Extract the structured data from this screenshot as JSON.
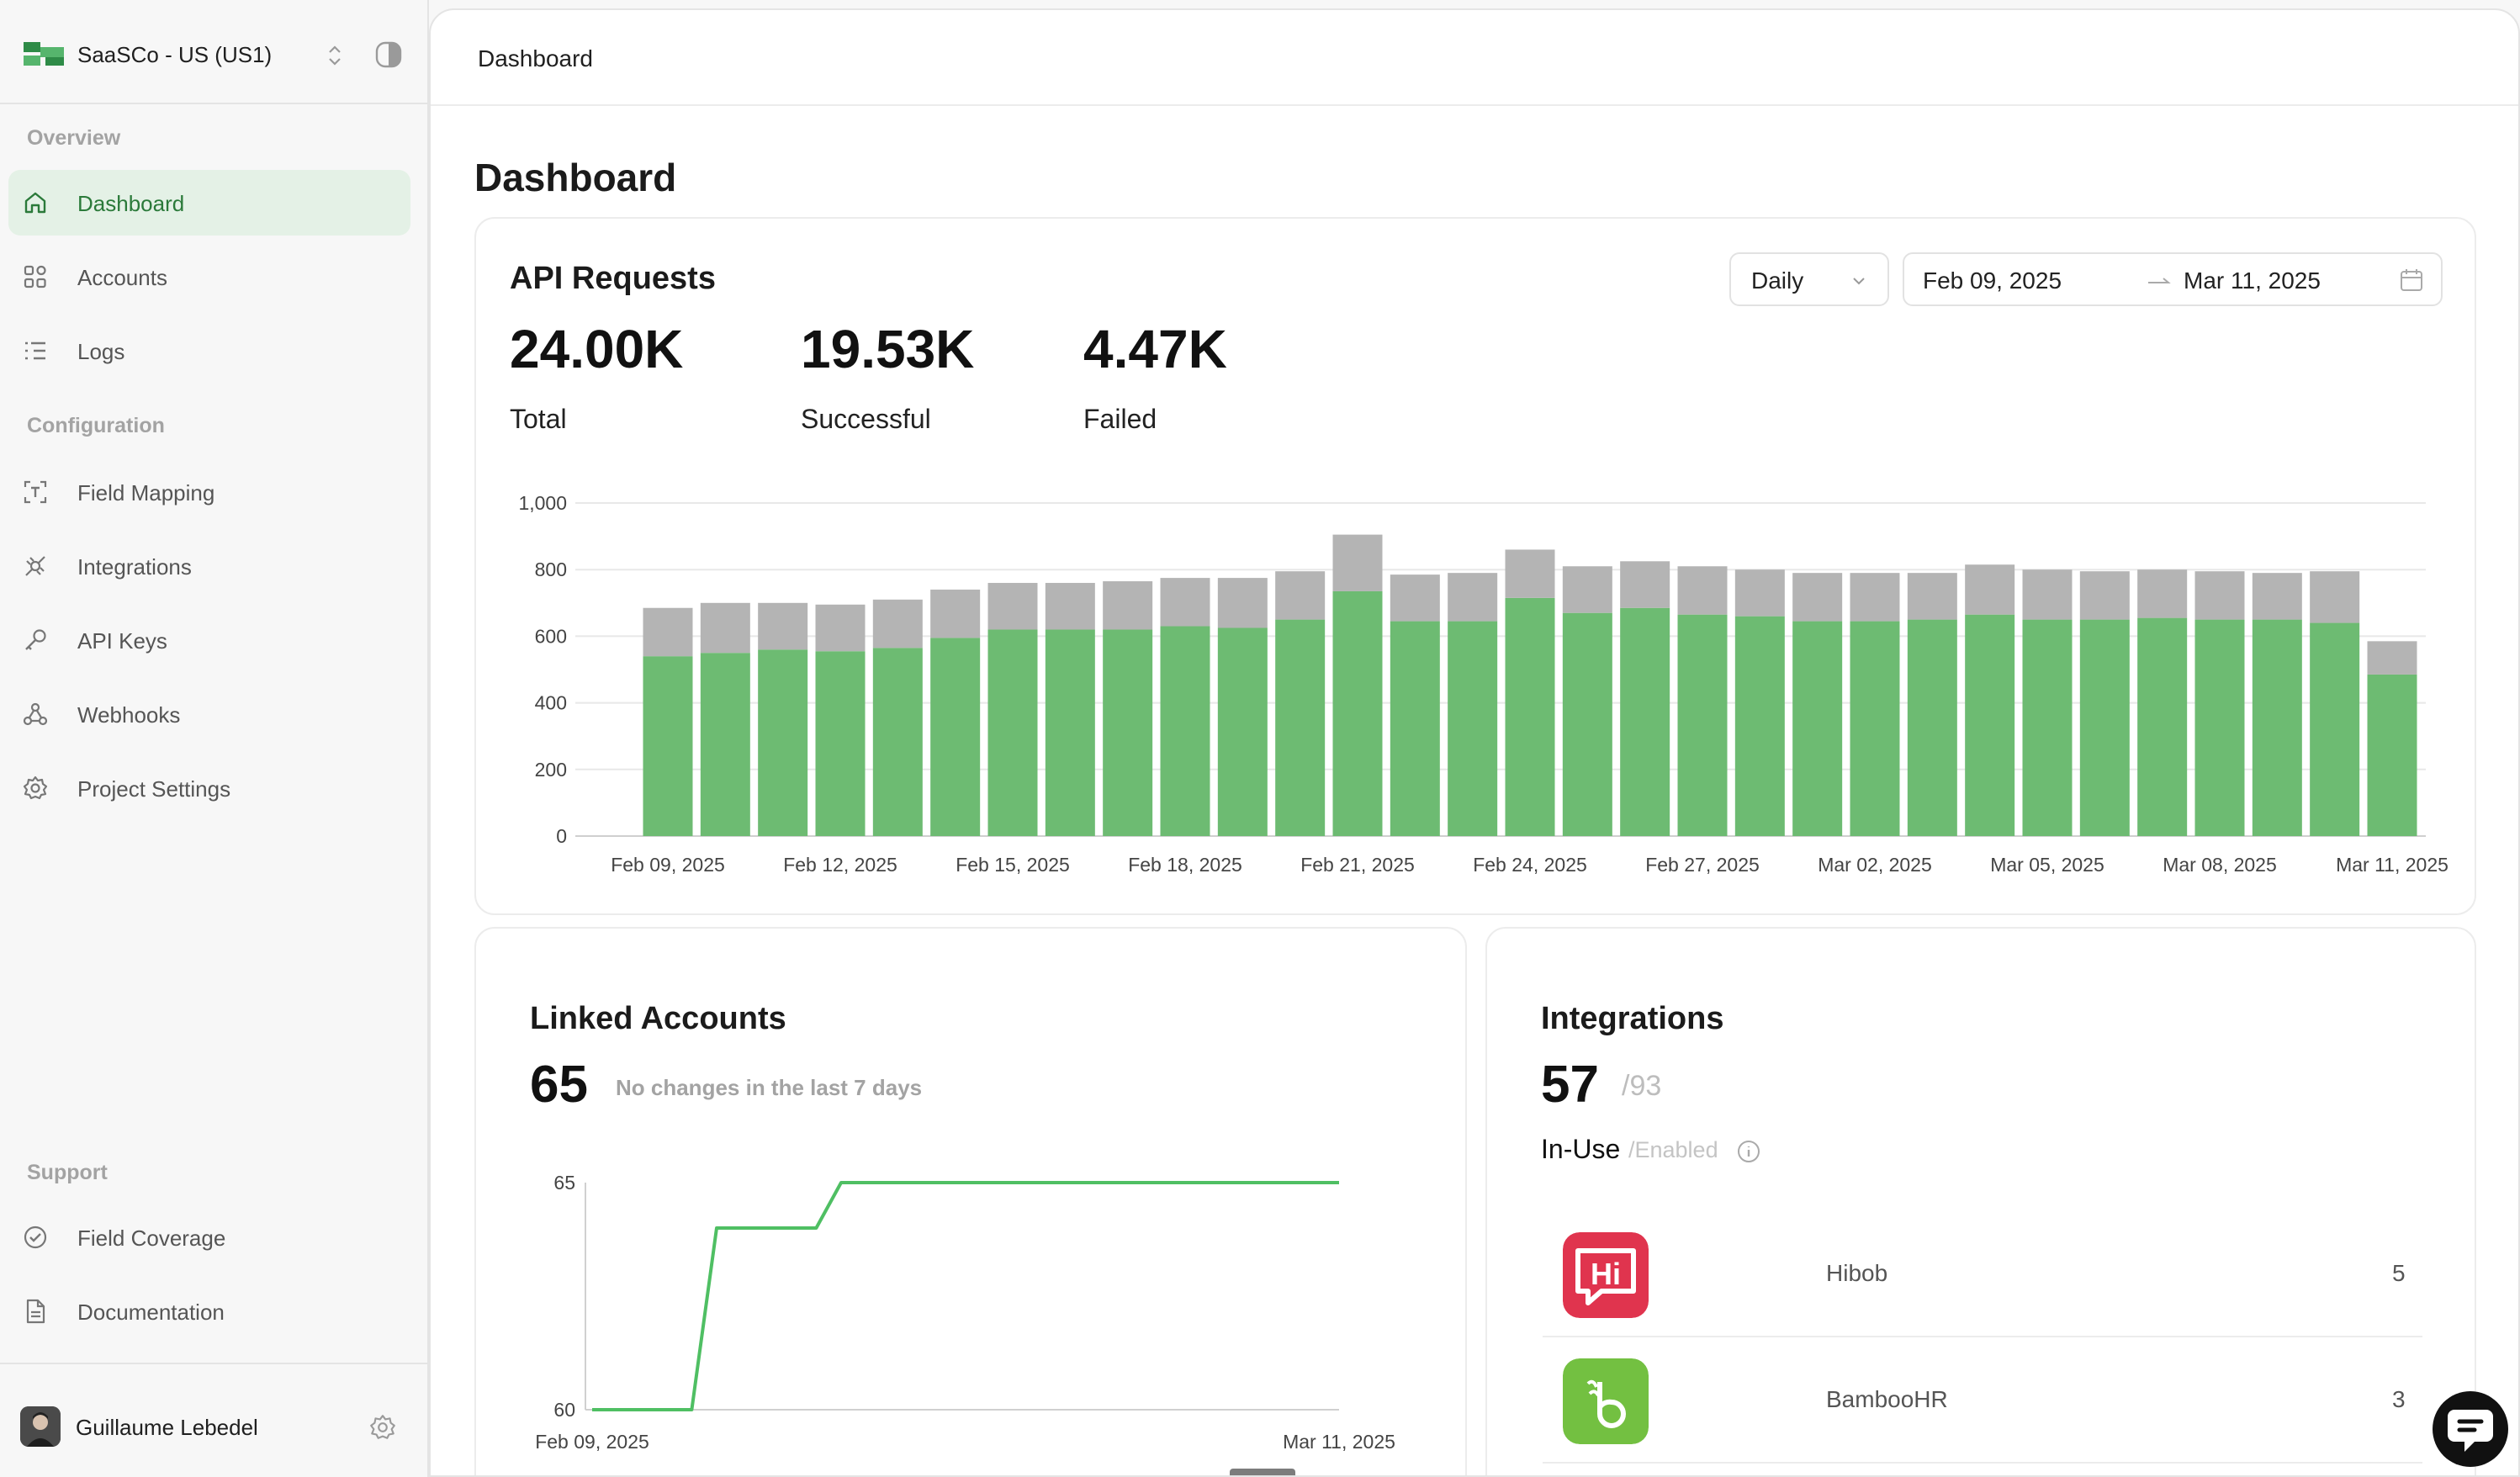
{
  "org": {
    "name": "SaaSCo - US (US1)"
  },
  "nav": {
    "overview_label": "Overview",
    "configuration_label": "Configuration",
    "support_label": "Support",
    "items": [
      {
        "label": "Dashboard",
        "icon": "home-icon",
        "active": true
      },
      {
        "label": "Accounts",
        "icon": "accounts-icon",
        "active": false
      },
      {
        "label": "Logs",
        "icon": "logs-icon",
        "active": false
      },
      {
        "label": "Field Mapping",
        "icon": "field-mapping-icon",
        "active": false
      },
      {
        "label": "Integrations",
        "icon": "integrations-icon",
        "active": false
      },
      {
        "label": "API Keys",
        "icon": "key-icon",
        "active": false
      },
      {
        "label": "Webhooks",
        "icon": "webhooks-icon",
        "active": false
      },
      {
        "label": "Project Settings",
        "icon": "gear-icon",
        "active": false
      },
      {
        "label": "Field Coverage",
        "icon": "check-circle-icon",
        "active": false
      },
      {
        "label": "Documentation",
        "icon": "document-icon",
        "active": false
      }
    ]
  },
  "user": {
    "name": "Guillaume Lebedel"
  },
  "topbar": {
    "title": "Dashboard"
  },
  "page": {
    "title": "Dashboard"
  },
  "api_requests": {
    "title": "API Requests",
    "granularity": "Daily",
    "date_start": "Feb 09, 2025",
    "date_end": "Mar 11, 2025",
    "stats": [
      {
        "value": "24.00K",
        "label": "Total"
      },
      {
        "value": "19.53K",
        "label": "Successful"
      },
      {
        "value": "4.47K",
        "label": "Failed"
      }
    ]
  },
  "linked_accounts": {
    "title": "Linked Accounts",
    "value": "65",
    "note": "No changes in the last 7 days"
  },
  "integrations": {
    "title": "Integrations",
    "in_use": "57",
    "enabled": "/93",
    "in_use_label": "In-Use",
    "enabled_label": "/Enabled",
    "rows": [
      {
        "name": "Hibob",
        "count": "5",
        "color": "#e0344e"
      },
      {
        "name": "BambooHR",
        "count": "3",
        "color": "#73c041"
      }
    ]
  },
  "colors": {
    "success": "#6dbb72",
    "failed": "#b4b4b4",
    "accent": "#2b7a3a",
    "line": "#4fbf63"
  },
  "chart_data": [
    {
      "type": "bar",
      "title": "API Requests",
      "stacked": true,
      "categories": [
        "Feb 09, 2025",
        "Feb 10, 2025",
        "Feb 11, 2025",
        "Feb 12, 2025",
        "Feb 13, 2025",
        "Feb 14, 2025",
        "Feb 15, 2025",
        "Feb 16, 2025",
        "Feb 17, 2025",
        "Feb 18, 2025",
        "Feb 19, 2025",
        "Feb 20, 2025",
        "Feb 21, 2025",
        "Feb 22, 2025",
        "Feb 23, 2025",
        "Feb 24, 2025",
        "Feb 25, 2025",
        "Feb 26, 2025",
        "Feb 27, 2025",
        "Feb 28, 2025",
        "Mar 01, 2025",
        "Mar 02, 2025",
        "Mar 03, 2025",
        "Mar 04, 2025",
        "Mar 05, 2025",
        "Mar 06, 2025",
        "Mar 07, 2025",
        "Mar 08, 2025",
        "Mar 09, 2025",
        "Mar 10, 2025",
        "Mar 11, 2025"
      ],
      "tick_labels": [
        "Feb 09, 2025",
        "Feb 12, 2025",
        "Feb 15, 2025",
        "Feb 18, 2025",
        "Feb 21, 2025",
        "Feb 24, 2025",
        "Feb 27, 2025",
        "Mar 02, 2025",
        "Mar 05, 2025",
        "Mar 08, 2025",
        "Mar 11, 2025"
      ],
      "y_ticks": [
        "0",
        "200",
        "400",
        "600",
        "800",
        "1,000"
      ],
      "ylim": [
        0,
        1000
      ],
      "series": [
        {
          "name": "Successful",
          "values": [
            540,
            550,
            560,
            555,
            565,
            595,
            620,
            620,
            620,
            630,
            625,
            650,
            735,
            645,
            645,
            715,
            670,
            685,
            665,
            660,
            645,
            645,
            650,
            665,
            650,
            650,
            655,
            650,
            650,
            640,
            485
          ]
        },
        {
          "name": "Failed",
          "values": [
            145,
            150,
            140,
            140,
            145,
            145,
            140,
            140,
            145,
            145,
            150,
            145,
            170,
            140,
            145,
            145,
            140,
            140,
            145,
            140,
            145,
            145,
            140,
            150,
            150,
            145,
            145,
            145,
            140,
            155,
            100
          ]
        }
      ]
    },
    {
      "type": "line",
      "title": "Linked Accounts",
      "x": [
        "Feb 09, 2025",
        "Feb 10, 2025",
        "Feb 11, 2025",
        "Feb 12, 2025",
        "Feb 13, 2025",
        "Feb 14, 2025",
        "Feb 15, 2025",
        "Feb 16, 2025",
        "Feb 17, 2025",
        "Feb 18, 2025",
        "Feb 19, 2025",
        "Feb 20, 2025",
        "Feb 21, 2025",
        "Feb 22, 2025",
        "Feb 23, 2025",
        "Feb 24, 2025",
        "Feb 25, 2025",
        "Feb 26, 2025",
        "Feb 27, 2025",
        "Feb 28, 2025",
        "Mar 01, 2025",
        "Mar 02, 2025",
        "Mar 03, 2025",
        "Mar 04, 2025",
        "Mar 05, 2025",
        "Mar 06, 2025",
        "Mar 07, 2025",
        "Mar 08, 2025",
        "Mar 09, 2025",
        "Mar 10, 2025",
        "Mar 11, 2025"
      ],
      "values": [
        60,
        60,
        60,
        60,
        60,
        64,
        64,
        64,
        64,
        64,
        65,
        65,
        65,
        65,
        65,
        65,
        65,
        65,
        65,
        65,
        65,
        65,
        65,
        65,
        65,
        65,
        65,
        65,
        65,
        65,
        65
      ],
      "tick_labels": [
        "Feb 09, 2025",
        "Mar 11, 2025"
      ],
      "y_ticks": [
        "60",
        "65"
      ],
      "ylim": [
        60,
        65
      ]
    }
  ]
}
